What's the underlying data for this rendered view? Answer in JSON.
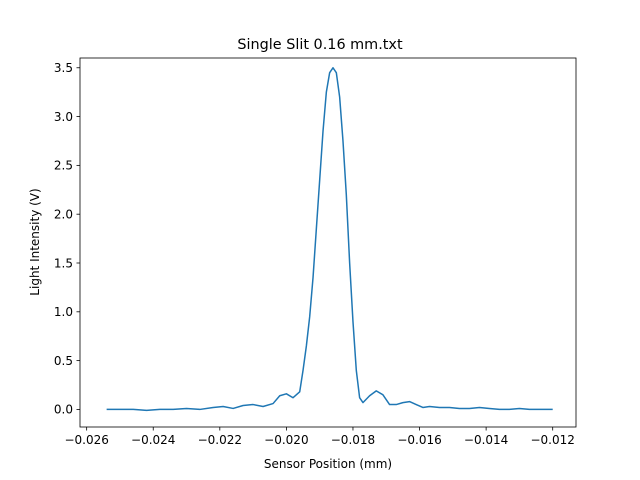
{
  "chart_data": {
    "type": "line",
    "title": "Single Slit 0.16 mm.txt",
    "xlabel": "Sensor Position (mm)",
    "ylabel": "Light Intensity (V)",
    "xlim": [
      -0.0262,
      -0.0113
    ],
    "ylim": [
      -0.18,
      3.6
    ],
    "xticks": [
      -0.026,
      -0.024,
      -0.022,
      -0.02,
      -0.018,
      -0.016,
      -0.014,
      -0.012
    ],
    "xtick_labels": [
      "−0.026",
      "−0.024",
      "−0.022",
      "−0.020",
      "−0.018",
      "−0.016",
      "−0.014",
      "−0.012"
    ],
    "yticks": [
      0.0,
      0.5,
      1.0,
      1.5,
      2.0,
      2.5,
      3.0,
      3.5
    ],
    "ytick_labels": [
      "0.0",
      "0.5",
      "1.0",
      "1.5",
      "2.0",
      "2.5",
      "3.0",
      "3.5"
    ],
    "grid": false,
    "series": [
      {
        "color": "#1f77b4",
        "x": [
          -0.0254,
          -0.025,
          -0.0246,
          -0.0242,
          -0.0238,
          -0.0234,
          -0.023,
          -0.0226,
          -0.0222,
          -0.0219,
          -0.0216,
          -0.0213,
          -0.021,
          -0.0207,
          -0.0204,
          -0.0202,
          -0.02,
          -0.0198,
          -0.0196,
          -0.0195,
          -0.0194,
          -0.0193,
          -0.0192,
          -0.0191,
          -0.019,
          -0.0189,
          -0.0188,
          -0.0187,
          -0.0186,
          -0.0185,
          -0.0184,
          -0.0183,
          -0.0182,
          -0.0181,
          -0.018,
          -0.0179,
          -0.0178,
          -0.0177,
          -0.0175,
          -0.0173,
          -0.0171,
          -0.0169,
          -0.0167,
          -0.0165,
          -0.0163,
          -0.0161,
          -0.0159,
          -0.0157,
          -0.0154,
          -0.0151,
          -0.0148,
          -0.0145,
          -0.0142,
          -0.0139,
          -0.0136,
          -0.0133,
          -0.013,
          -0.0127,
          -0.0124,
          -0.012
        ],
        "y": [
          0.0,
          0.0,
          0.0,
          -0.01,
          0.0,
          0.0,
          0.01,
          0.0,
          0.02,
          0.03,
          0.01,
          0.04,
          0.05,
          0.03,
          0.06,
          0.14,
          0.16,
          0.12,
          0.18,
          0.4,
          0.65,
          0.95,
          1.35,
          1.85,
          2.35,
          2.85,
          3.25,
          3.45,
          3.5,
          3.45,
          3.2,
          2.75,
          2.2,
          1.5,
          0.9,
          0.4,
          0.12,
          0.07,
          0.14,
          0.19,
          0.15,
          0.05,
          0.05,
          0.07,
          0.08,
          0.05,
          0.02,
          0.03,
          0.02,
          0.02,
          0.01,
          0.01,
          0.02,
          0.01,
          0.0,
          0.0,
          0.01,
          0.0,
          0.0,
          0.0
        ]
      }
    ]
  }
}
